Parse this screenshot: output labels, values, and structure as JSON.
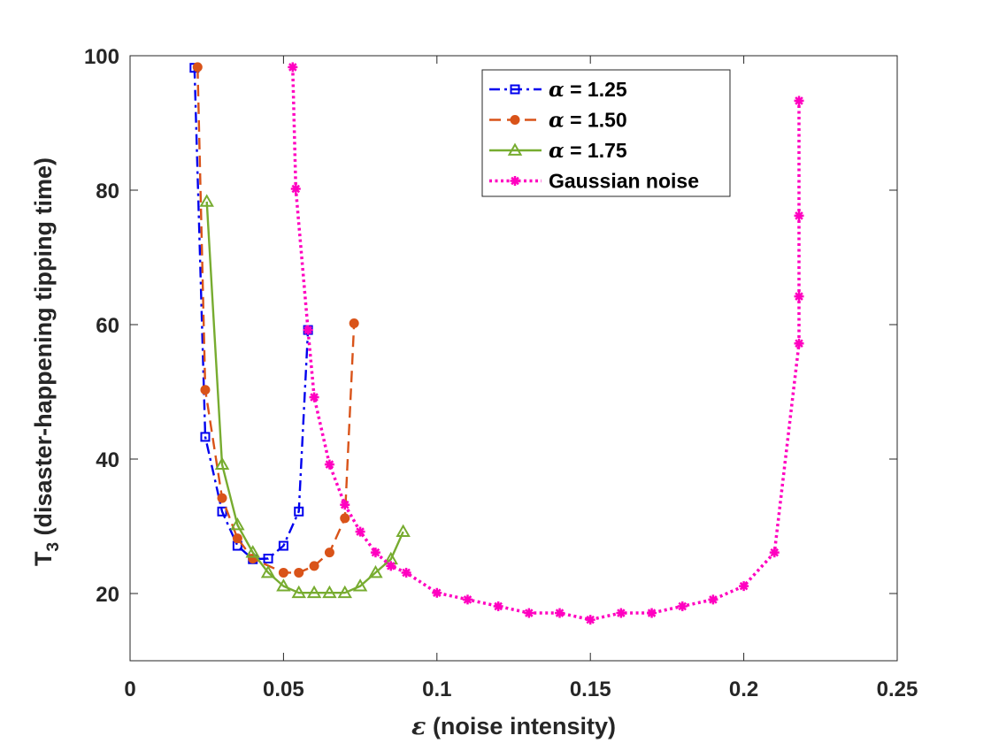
{
  "chart_data": {
    "type": "line",
    "title": "",
    "xlabel": "ε (noise intensity)",
    "ylabel": "T₃ (disaster-happening tipping time)",
    "ylabel_parts": {
      "main": "T",
      "sub": "3",
      "rest": " (disaster-happening tipping time)"
    },
    "xlabel_parts": {
      "symbol": "ε",
      "rest": " (noise intensity)"
    },
    "xlim": [
      0,
      0.25
    ],
    "ylim": [
      10,
      100
    ],
    "xticks": [
      0,
      0.05,
      0.1,
      0.15,
      0.2,
      0.25
    ],
    "xtick_labels": [
      "0",
      "0.05",
      "0.1",
      "0.15",
      "0.2",
      "0.25"
    ],
    "yticks": [
      20,
      40,
      60,
      80,
      100
    ],
    "ytick_labels": [
      "20",
      "40",
      "60",
      "80",
      "100"
    ],
    "grid": false,
    "legend_position": "top-center",
    "series": [
      {
        "name": "α = 1.25",
        "legend_symbol": "α",
        "legend_rest": " = 1.25",
        "color": "#0000ee",
        "line": "dashdot",
        "marker": "square",
        "x": [
          0.021,
          0.0245,
          0.03,
          0.035,
          0.04,
          0.045,
          0.05,
          0.055,
          0.058
        ],
        "y": [
          98.2,
          43.3,
          32.2,
          27.1,
          25.1,
          25.2,
          27.1,
          32.2,
          59.2
        ]
      },
      {
        "name": "α = 1.50",
        "legend_symbol": "α",
        "legend_rest": " = 1.50",
        "color": "#d95319",
        "line": "dashed",
        "marker": "circle",
        "x": [
          0.022,
          0.0245,
          0.03,
          0.035,
          0.04,
          0.05,
          0.055,
          0.06,
          0.065,
          0.07,
          0.073
        ],
        "y": [
          98.3,
          50.3,
          34.2,
          28.2,
          25.2,
          23.1,
          23.1,
          24.1,
          26.1,
          31.2,
          60.2
        ]
      },
      {
        "name": "α = 1.75",
        "legend_symbol": "α",
        "legend_rest": " = 1.75",
        "color": "#77ac30",
        "line": "solid",
        "marker": "triangle",
        "x": [
          0.025,
          0.03,
          0.035,
          0.04,
          0.045,
          0.05,
          0.055,
          0.06,
          0.065,
          0.07,
          0.075,
          0.08,
          0.085,
          0.089
        ],
        "y": [
          78.3,
          39.2,
          30.2,
          26.1,
          23.1,
          21.1,
          20.1,
          20.1,
          20.1,
          20.1,
          21.1,
          23.1,
          25.1,
          29.2
        ]
      },
      {
        "name": "Gaussian noise",
        "legend_symbol": "",
        "legend_rest": "Gaussian noise",
        "color": "#ff00c0",
        "line": "dotted",
        "marker": "asterisk",
        "x": [
          0.053,
          0.054,
          0.058,
          0.06,
          0.065,
          0.07,
          0.075,
          0.08,
          0.085,
          0.09,
          0.1,
          0.11,
          0.12,
          0.13,
          0.14,
          0.15,
          0.16,
          0.17,
          0.18,
          0.19,
          0.2,
          0.21,
          0.218,
          0.218,
          0.218,
          0.218
        ],
        "y": [
          98.3,
          80.2,
          59.2,
          49.2,
          39.2,
          33.2,
          29.2,
          26.1,
          24.1,
          23.1,
          20.1,
          19.1,
          18.1,
          17.1,
          17.1,
          16.1,
          17.1,
          17.1,
          18.1,
          19.1,
          21.1,
          26.1,
          57.2,
          64.2,
          76.2,
          93.3
        ]
      }
    ]
  }
}
